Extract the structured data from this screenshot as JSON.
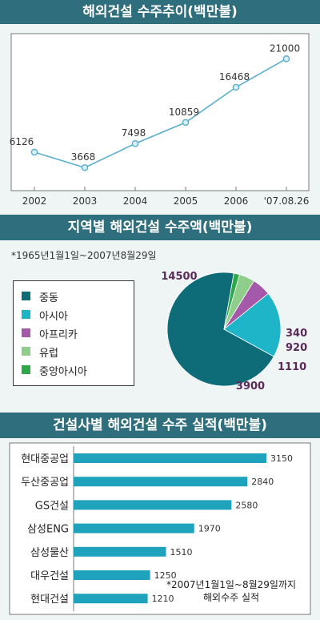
{
  "headers": {
    "line": "해외건설 수주추이(백만불)",
    "pie": "지역별 해외건설 수주액(백만불)",
    "bar": "건설사별 해외건설 수주 실적(백만불)"
  },
  "pie_note": "*1965년1월1일~2007년8월29일",
  "bar_note_line1": "*2007년1월1일~8월29일까지",
  "bar_note_line2": "해외수주 실적",
  "colors": {
    "header": "#2f6e7d",
    "panel": "#eff4f4",
    "line": "#5aaed0",
    "bar": "#1fa3bd",
    "pie_label": "#5a2a5a"
  },
  "chart_data": [
    {
      "type": "line",
      "categories": [
        "2002",
        "2003",
        "2004",
        "2005",
        "2006",
        "'07.08.26"
      ],
      "values": [
        6126,
        3668,
        7498,
        10859,
        16468,
        21000
      ],
      "title": "해외건설 수주추이(백만불)",
      "ylim": [
        0,
        25000
      ],
      "grid": false
    },
    {
      "type": "pie",
      "title": "지역별 해외건설 수주액(백만불)",
      "labels": [
        "중동",
        "아시아",
        "아프리카",
        "유럽",
        "중앙아시아"
      ],
      "values": [
        14500,
        3900,
        1110,
        920,
        340
      ],
      "colors": [
        "#0e6b78",
        "#1fb5c9",
        "#a45aa8",
        "#8fce8a",
        "#2fa84a"
      ],
      "legend": "left"
    },
    {
      "type": "bar",
      "orientation": "horizontal",
      "title": "건설사별 해외건설 수주 실적(백만불)",
      "categories": [
        "현대중공업",
        "두산중공업",
        "GS건설",
        "삼성ENG",
        "삼성물산",
        "대우건설",
        "현대건설"
      ],
      "values": [
        3150,
        2840,
        2580,
        1970,
        1510,
        1250,
        1210
      ],
      "xlim": [
        0,
        3500
      ]
    }
  ]
}
